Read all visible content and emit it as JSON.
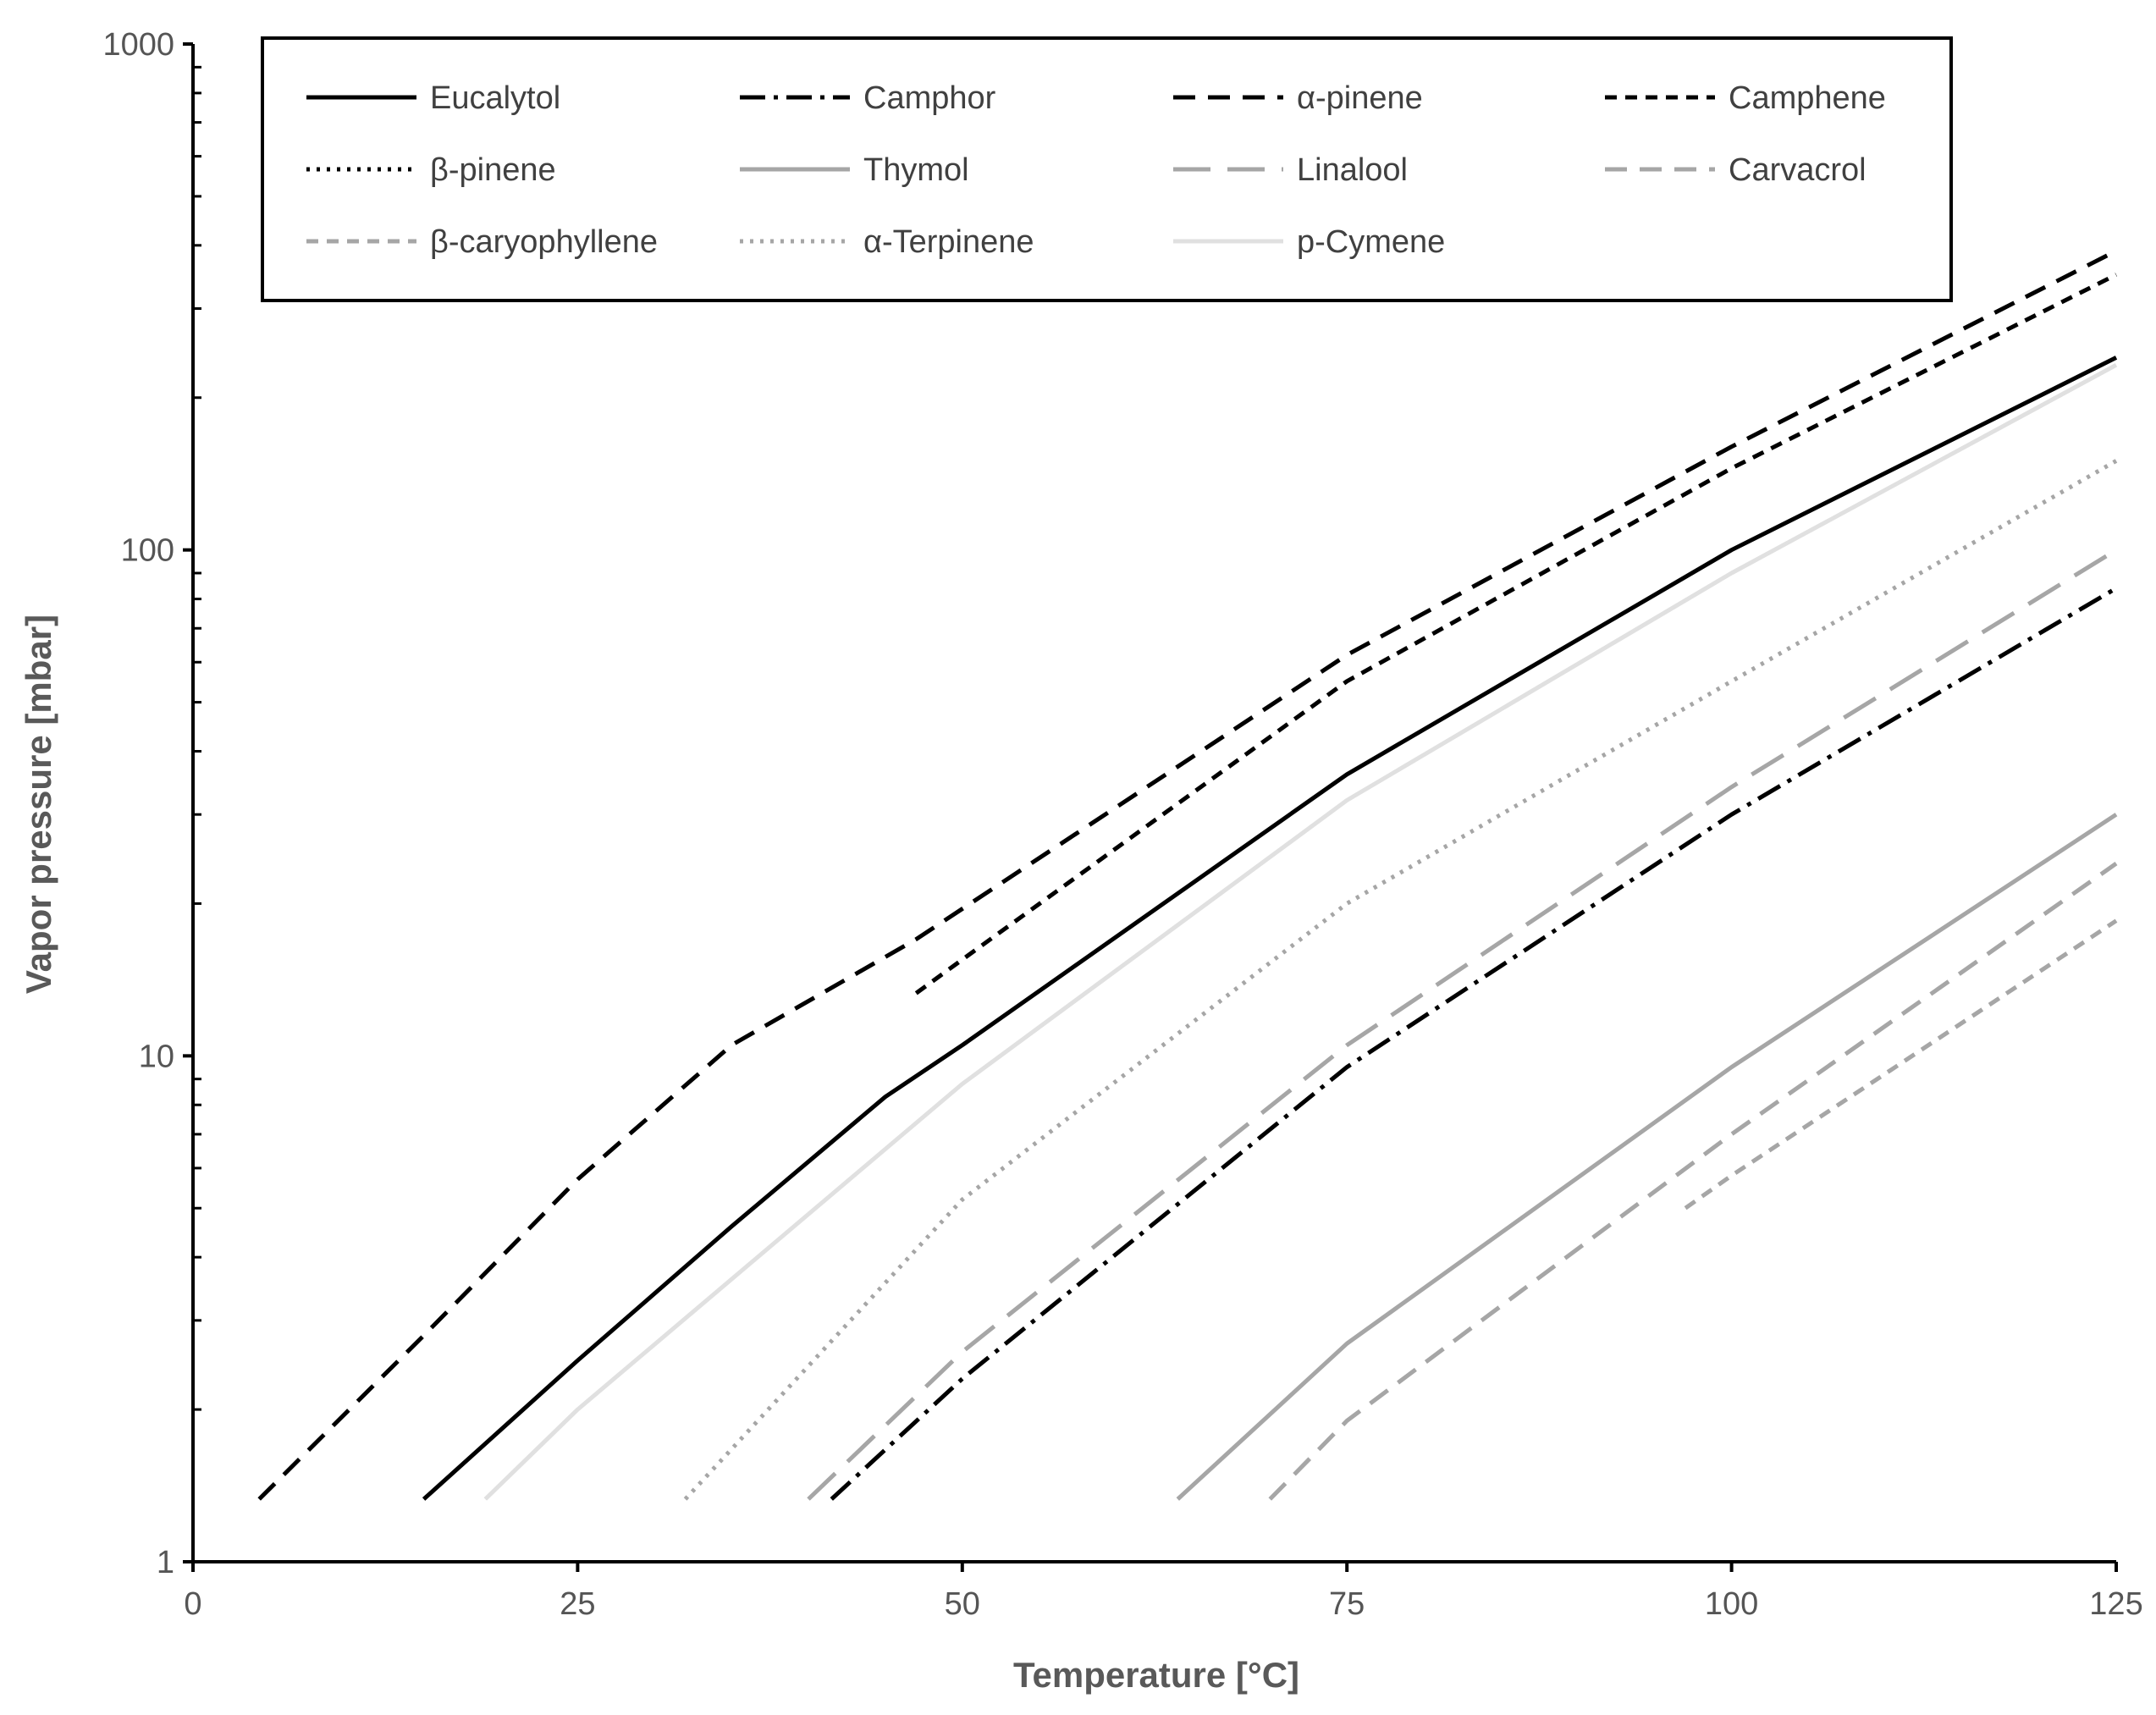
{
  "chart_data": {
    "type": "line",
    "title": "",
    "xlabel": "Temperature [°C]",
    "ylabel": "Vapor pressure [mbar]",
    "xlim": [
      0,
      125
    ],
    "ylim": [
      1,
      1000
    ],
    "yscale": "log",
    "grid": false,
    "legend_position": "top",
    "x_ticks": [
      0,
      25,
      50,
      75,
      100,
      125
    ],
    "x_tick_labels": [
      "0",
      "25",
      "50",
      "75",
      "100",
      "125"
    ],
    "y_ticks": [
      1,
      10,
      100,
      1000
    ],
    "y_tick_labels": [
      "1",
      "10",
      "100",
      "1000"
    ],
    "series": [
      {
        "name": "Eucalytol",
        "color": "#000000",
        "dash": "solid",
        "x": [
          15,
          25,
          35,
          45,
          50,
          75,
          100,
          125
        ],
        "values": [
          1.33,
          2.5,
          4.6,
          8.3,
          10.5,
          36,
          100,
          240
        ]
      },
      {
        "name": "Camphor",
        "color": "#000000",
        "dash": "dashdot",
        "x": [
          41.5,
          50,
          75,
          100,
          125
        ],
        "values": [
          1.33,
          2.3,
          9.5,
          30,
          84
        ]
      },
      {
        "name": "α-pinene",
        "color": "#000000",
        "dash": "dash",
        "x": [
          4.3,
          15,
          25,
          35,
          47,
          75,
          100,
          125
        ],
        "values": [
          1.33,
          2.8,
          5.7,
          10.5,
          17,
          62,
          160,
          390
        ]
      },
      {
        "name": "Camphene",
        "color": "#000000",
        "dash": "shortdash",
        "x": [
          47,
          50,
          75,
          100,
          125
        ],
        "values": [
          13.3,
          15.5,
          55,
          145,
          350
        ]
      },
      {
        "name": "β-pinene",
        "color": "#000000",
        "dash": "dot",
        "x": [],
        "values": []
      },
      {
        "name": "Thymol",
        "color": "#a6a6a6",
        "dash": "solid",
        "x": [
          64,
          75,
          100,
          125
        ],
        "values": [
          1.33,
          2.7,
          9.5,
          30
        ]
      },
      {
        "name": "Linalool",
        "color": "#a6a6a6",
        "dash": "longdash",
        "x": [
          40,
          50,
          75,
          100,
          125
        ],
        "values": [
          1.33,
          2.6,
          10.5,
          34,
          100
        ]
      },
      {
        "name": "Carvacrol",
        "color": "#a6a6a6",
        "dash": "dash",
        "x": [
          70,
          75,
          100,
          125
        ],
        "values": [
          1.33,
          1.9,
          7,
          24
        ]
      },
      {
        "name": "β-caryophyllene",
        "color": "#a6a6a6",
        "dash": "shortdash",
        "x": [
          97,
          100,
          125
        ],
        "values": [
          5,
          5.8,
          18.5
        ]
      },
      {
        "name": "α-Terpinene",
        "color": "#a6a6a6",
        "dash": "dot",
        "x": [
          32,
          50,
          75,
          100,
          125
        ],
        "values": [
          1.33,
          5.2,
          20,
          55,
          150
        ]
      },
      {
        "name": "p-Cymene",
        "color": "#e0e0e0",
        "dash": "solid",
        "x": [
          19,
          25,
          50,
          75,
          100,
          125
        ],
        "values": [
          1.33,
          2.0,
          8.8,
          32,
          90,
          232
        ]
      }
    ]
  }
}
